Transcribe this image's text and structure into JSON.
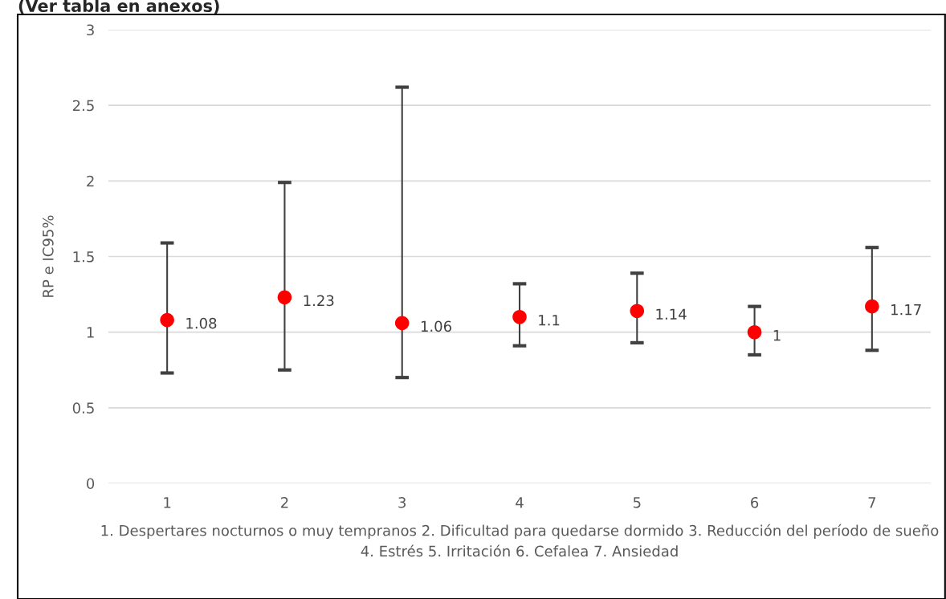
{
  "chart_data": {
    "type": "scatter",
    "title": "(Ver tabla en anexos)",
    "xlabel": "1. Despertares nocturnos o muy tempranos 2. Dificultad para quedarse dormido 3. Reducción del período de sueño 4. Estrés 5. Irritación 6. Cefalea 7. Ansiedad",
    "ylabel": "RP e IC95%",
    "categories": [
      "1",
      "2",
      "3",
      "4",
      "5",
      "6",
      "7"
    ],
    "series": [
      {
        "color": "#ff0000",
        "values": [
          1.08,
          1.23,
          1.06,
          1.1,
          1.14,
          1,
          1.17
        ],
        "errors": [
          [
            0.73,
            1.59
          ],
          [
            0.75,
            1.99
          ],
          [
            0.7,
            2.62
          ],
          [
            0.91,
            1.32
          ],
          [
            0.93,
            1.39
          ],
          [
            0.85,
            1.17
          ],
          [
            0.88,
            1.56
          ]
        ]
      }
    ],
    "ylim": [
      0,
      3
    ],
    "yticks": [
      0,
      0.5,
      1,
      1.5,
      2,
      2.5,
      3
    ],
    "grid": "y",
    "marker": "circle",
    "data_labels": true,
    "legend": false
  }
}
